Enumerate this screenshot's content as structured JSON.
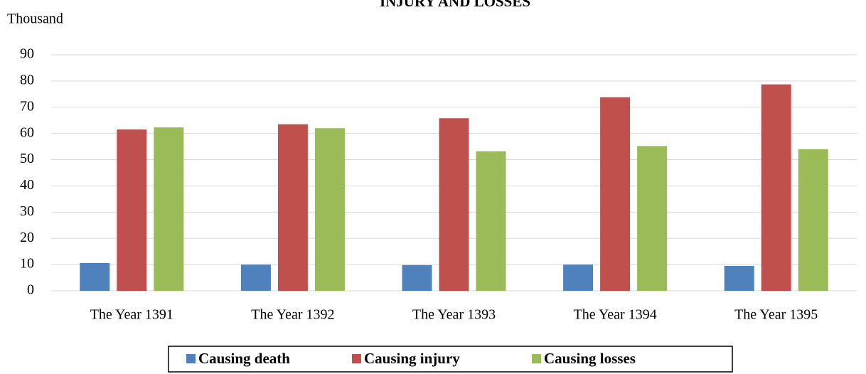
{
  "chart_data": {
    "type": "bar",
    "title": "INJURY AND LOSSES",
    "y_label": "Thousand",
    "categories": [
      "The Year 1391",
      "The Year 1392",
      "The Year 1393",
      "The Year 1394",
      "The Year 1395"
    ],
    "series": [
      {
        "name": "Causing death",
        "color": "#4f81bd",
        "values": [
          10.6,
          10.0,
          9.8,
          10.0,
          9.5
        ]
      },
      {
        "name": "Causing injury",
        "color": "#c0504d",
        "values": [
          61.5,
          63.5,
          65.8,
          73.8,
          78.7
        ]
      },
      {
        "name": "Causing losses",
        "color": "#9bbb59",
        "values": [
          62.3,
          62.0,
          53.2,
          55.2,
          54.0
        ]
      }
    ],
    "ylim": [
      0,
      90
    ],
    "yticks": [
      0,
      10,
      20,
      30,
      40,
      50,
      60,
      70,
      80,
      90
    ],
    "grid": true,
    "legend": "bottom"
  }
}
